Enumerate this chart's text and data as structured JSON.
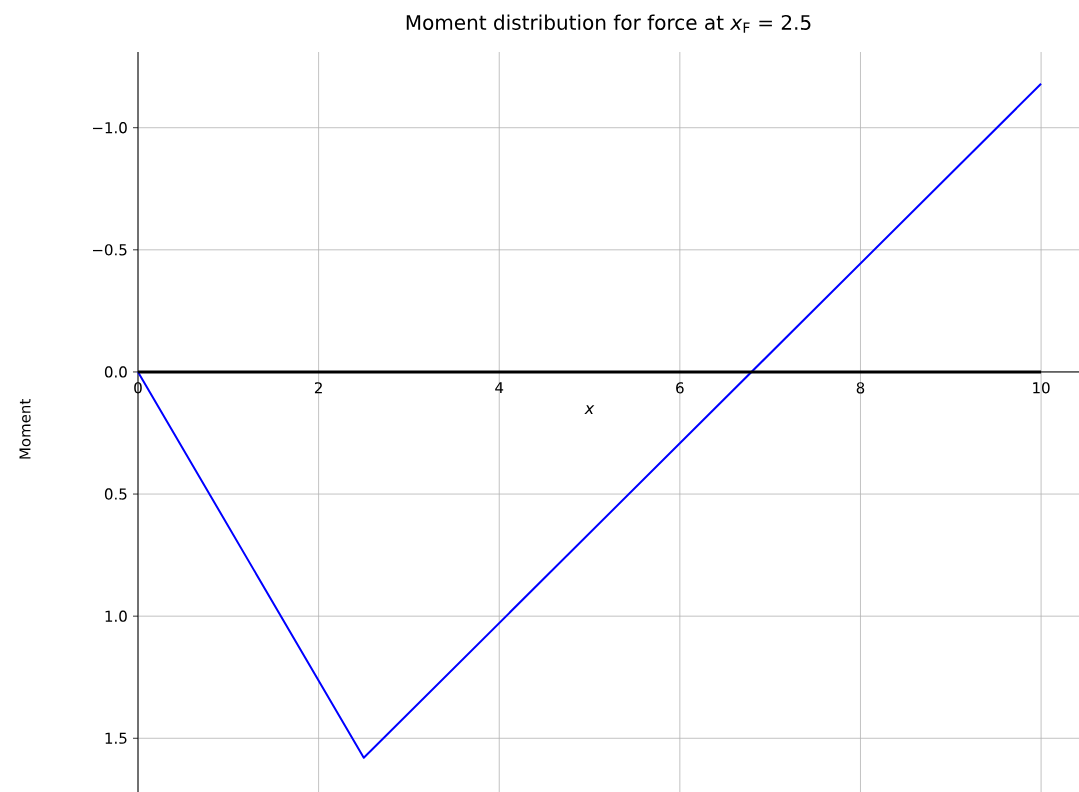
{
  "chart_data": {
    "type": "line",
    "title": "Moment distribution for force at *x*$_{F}$ = 2.5",
    "xlabel": "*x*",
    "ylabel": "Moment",
    "x": [
      0,
      2.5,
      10
    ],
    "series": [
      {
        "color": "#0000ff",
        "values": [
          0,
          1.58,
          -1.18
        ]
      },
      {
        "color": "#000000",
        "x": [
          0,
          10
        ],
        "values": [
          0,
          0
        ]
      }
    ],
    "xlim": [
      0,
      10.42
    ],
    "ylim": [
      1.72,
      -1.31
    ],
    "xticks": [
      0,
      2,
      4,
      6,
      8,
      10
    ],
    "yticks": [
      {
        "value": -1.0,
        "label": "−1.0"
      },
      {
        "value": -0.5,
        "label": "−0.5"
      },
      {
        "value": 0,
        "label": "0.0"
      },
      0.5,
      {
        "value": 1,
        "label": "1.0"
      },
      1.5
    ],
    "grid": true,
    "marker": "none",
    "line_style": "solid"
  }
}
